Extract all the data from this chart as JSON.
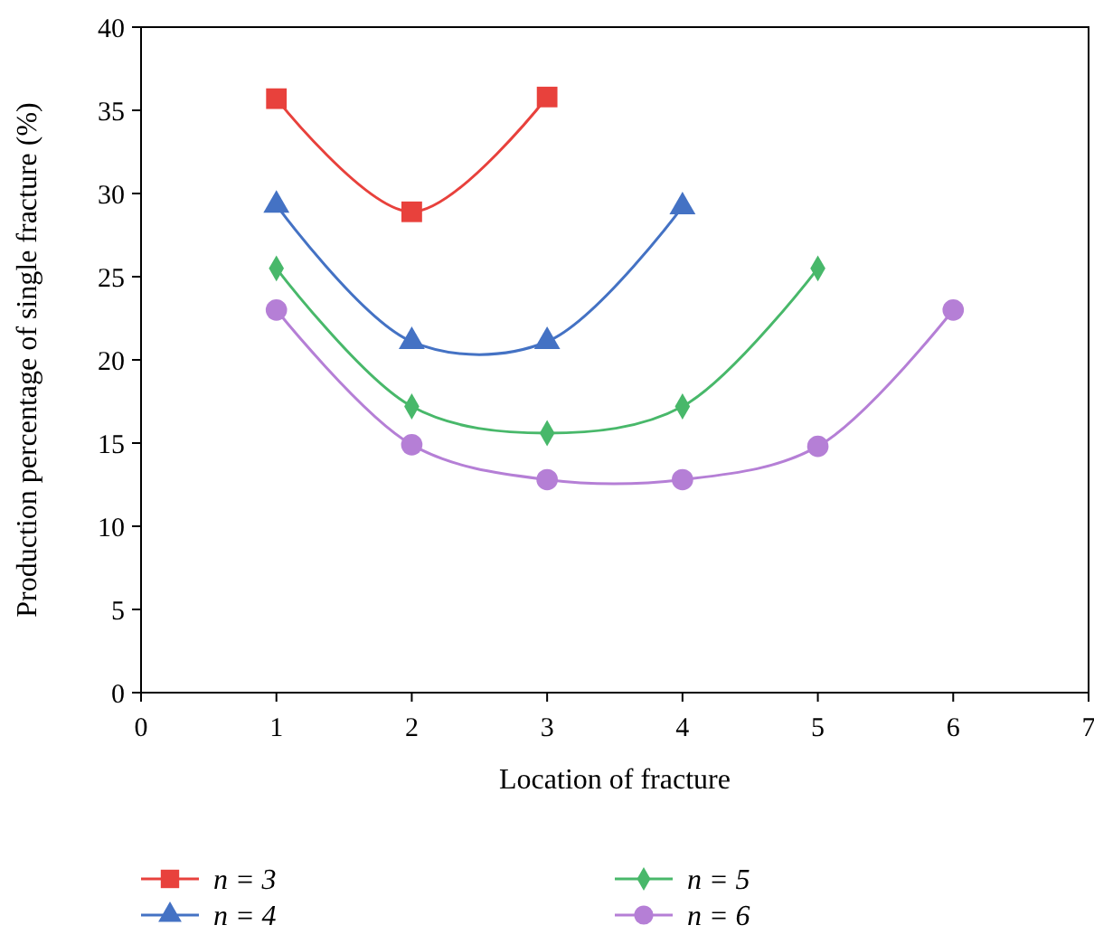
{
  "chart_data": {
    "type": "line",
    "xlabel": "Location of fracture",
    "ylabel": "Production percentage of single fracture (%)",
    "xlim": [
      0,
      7
    ],
    "xticks": [
      0,
      1,
      2,
      3,
      4,
      5,
      6,
      7
    ],
    "ylim": [
      0,
      40
    ],
    "yticks": [
      0,
      5,
      10,
      15,
      20,
      25,
      30,
      35,
      40
    ],
    "grid": false,
    "legend": "bottom",
    "line_style": "solid",
    "series": [
      {
        "name": "n = 3",
        "color": "#e8413c",
        "marker": "square",
        "x": [
          1,
          2,
          3
        ],
        "values": [
          35.7,
          28.9,
          35.8
        ]
      },
      {
        "name": "n = 4",
        "color": "#4472c4",
        "marker": "triangle",
        "x": [
          1,
          2,
          3,
          4
        ],
        "values": [
          29.3,
          21.1,
          21.1,
          29.2
        ]
      },
      {
        "name": "n = 5",
        "color": "#48b86a",
        "marker": "diamond",
        "x": [
          1,
          2,
          3,
          4,
          5
        ],
        "values": [
          25.5,
          17.2,
          15.6,
          17.2,
          25.5
        ]
      },
      {
        "name": "n = 6",
        "color": "#b57fd6",
        "marker": "circle",
        "x": [
          1,
          2,
          3,
          4,
          5,
          6
        ],
        "values": [
          23.0,
          14.9,
          12.8,
          12.8,
          14.8,
          23.0
        ]
      }
    ]
  }
}
